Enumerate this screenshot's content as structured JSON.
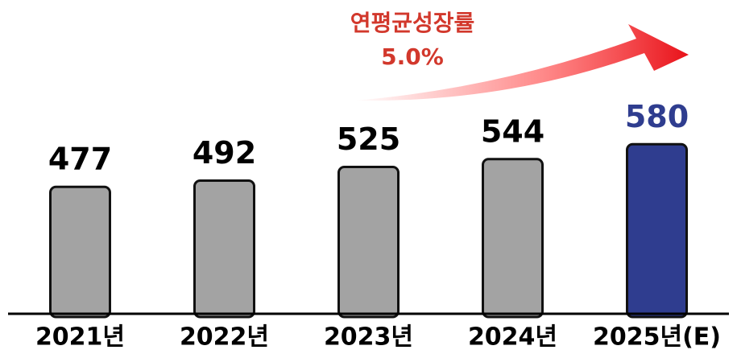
{
  "chart_data": {
    "type": "bar",
    "annotations": [
      "연평균성장률",
      "5.0%"
    ],
    "categories": [
      "2021년",
      "2022년",
      "2023년",
      "2024년",
      "2025년(E)"
    ],
    "values": [
      477,
      492,
      525,
      544,
      580
    ],
    "colors": [
      "#a3a3a3",
      "#a3a3a3",
      "#a3a3a3",
      "#a3a3a3",
      "#2f3d8f"
    ],
    "label_colors": [
      "#000000",
      "#000000",
      "#000000",
      "#000000",
      "#2f3d8f"
    ],
    "ylim": [
      170,
      600
    ]
  }
}
